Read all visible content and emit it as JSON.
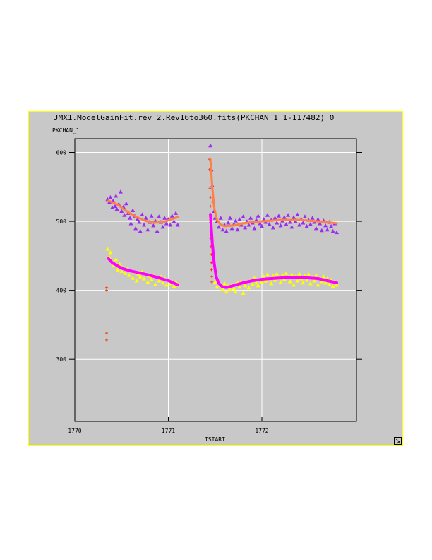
{
  "window": {
    "title": "JMX1.ModelGainFit.rev_2.Rev16to360.fits(PKCHAN_1_1-117482)_0",
    "resize_icon": "resize-corner-icon",
    "frame_color": "#ffff00",
    "background_color": "#c8c8c8"
  },
  "chart_data": {
    "type": "scatter",
    "title": "JMX1.ModelGainFit.rev_2.Rev16to360.fits(PKCHAN_1_1-117482)_0",
    "xlabel": "TSTART",
    "ylabel": "PKCHAN_1",
    "xlim": [
      1770,
      1772.6
    ],
    "ylim": [
      210,
      620
    ],
    "grid": true,
    "x_ticks": [
      1770,
      1771,
      1772
    ],
    "x_tick_labels": [
      "1770",
      "1771",
      "1772"
    ],
    "y_ticks": [
      300,
      400,
      500,
      600
    ],
    "y_tick_labels": [
      "300",
      "400",
      "500",
      "600"
    ],
    "series": [
      {
        "marker": "triangle",
        "color": "#9a2df0",
        "points": [
          [
            1770.35,
            532
          ],
          [
            1770.37,
            528
          ],
          [
            1770.38,
            535
          ],
          [
            1770.4,
            520
          ],
          [
            1770.41,
            530
          ],
          [
            1770.43,
            522
          ],
          [
            1770.44,
            537
          ],
          [
            1770.45,
            518
          ],
          [
            1770.47,
            525
          ],
          [
            1770.49,
            543
          ],
          [
            1770.5,
            515
          ],
          [
            1770.52,
            521
          ],
          [
            1770.53,
            509
          ],
          [
            1770.55,
            526
          ],
          [
            1770.57,
            512
          ],
          [
            1770.59,
            505
          ],
          [
            1770.6,
            497
          ],
          [
            1770.62,
            516
          ],
          [
            1770.64,
            508
          ],
          [
            1770.65,
            490
          ],
          [
            1770.67,
            503
          ],
          [
            1770.69,
            499
          ],
          [
            1770.7,
            486
          ],
          [
            1770.72,
            510
          ],
          [
            1770.74,
            495
          ],
          [
            1770.76,
            505
          ],
          [
            1770.78,
            488
          ],
          [
            1770.8,
            499
          ],
          [
            1770.82,
            508
          ],
          [
            1770.84,
            494
          ],
          [
            1770.86,
            501
          ],
          [
            1770.88,
            486
          ],
          [
            1770.9,
            507
          ],
          [
            1770.92,
            499
          ],
          [
            1770.94,
            492
          ],
          [
            1770.96,
            505
          ],
          [
            1770.98,
            497
          ],
          [
            1771.0,
            503
          ],
          [
            1771.02,
            495
          ],
          [
            1771.04,
            508
          ],
          [
            1771.06,
            500
          ],
          [
            1771.08,
            512
          ],
          [
            1771.1,
            495
          ],
          [
            1771.45,
            610
          ],
          [
            1771.46,
            575
          ],
          [
            1771.47,
            552
          ],
          [
            1771.48,
            530
          ],
          [
            1771.49,
            515
          ],
          [
            1771.5,
            505
          ],
          [
            1771.52,
            500
          ],
          [
            1771.54,
            492
          ],
          [
            1771.56,
            505
          ],
          [
            1771.58,
            488
          ],
          [
            1771.6,
            495
          ],
          [
            1771.62,
            486
          ],
          [
            1771.64,
            498
          ],
          [
            1771.66,
            505
          ],
          [
            1771.68,
            490
          ],
          [
            1771.7,
            496
          ],
          [
            1771.72,
            501
          ],
          [
            1771.74,
            488
          ],
          [
            1771.76,
            503
          ],
          [
            1771.78,
            495
          ],
          [
            1771.8,
            507
          ],
          [
            1771.82,
            491
          ],
          [
            1771.84,
            500
          ],
          [
            1771.86,
            495
          ],
          [
            1771.88,
            505
          ],
          [
            1771.9,
            498
          ],
          [
            1771.92,
            490
          ],
          [
            1771.94,
            502
          ],
          [
            1771.96,
            508
          ],
          [
            1771.98,
            497
          ],
          [
            1772.0,
            493
          ],
          [
            1772.02,
            503
          ],
          [
            1772.04,
            499
          ],
          [
            1772.06,
            509
          ],
          [
            1772.08,
            496
          ],
          [
            1772.1,
            502
          ],
          [
            1772.12,
            491
          ],
          [
            1772.14,
            505
          ],
          [
            1772.16,
            498
          ],
          [
            1772.18,
            508
          ],
          [
            1772.2,
            494
          ],
          [
            1772.22,
            501
          ],
          [
            1772.24,
            506
          ],
          [
            1772.26,
            496
          ],
          [
            1772.28,
            509
          ],
          [
            1772.3,
            499
          ],
          [
            1772.32,
            492
          ],
          [
            1772.34,
            506
          ],
          [
            1772.36,
            500
          ],
          [
            1772.38,
            510
          ],
          [
            1772.4,
            495
          ],
          [
            1772.42,
            503
          ],
          [
            1772.44,
            498
          ],
          [
            1772.46,
            507
          ],
          [
            1772.48,
            493
          ],
          [
            1772.5,
            502
          ],
          [
            1772.52,
            496
          ],
          [
            1772.54,
            505
          ],
          [
            1772.56,
            499
          ],
          [
            1772.58,
            490
          ],
          [
            1772.6,
            503
          ],
          [
            1772.62,
            497
          ],
          [
            1772.64,
            487
          ],
          [
            1772.66,
            501
          ],
          [
            1772.68,
            494
          ],
          [
            1772.7,
            488
          ],
          [
            1772.72,
            499
          ],
          [
            1772.74,
            493
          ],
          [
            1772.76,
            486
          ],
          [
            1772.78,
            497
          ],
          [
            1772.8,
            484
          ]
        ]
      },
      {
        "marker": "triangle",
        "color": "#ffff00",
        "points": [
          [
            1770.35,
            460
          ],
          [
            1770.37,
            448
          ],
          [
            1770.38,
            455
          ],
          [
            1770.4,
            440
          ],
          [
            1770.42,
            437
          ],
          [
            1770.44,
            445
          ],
          [
            1770.46,
            430
          ],
          [
            1770.48,
            438
          ],
          [
            1770.5,
            428
          ],
          [
            1770.52,
            433
          ],
          [
            1770.54,
            425
          ],
          [
            1770.56,
            431
          ],
          [
            1770.58,
            422
          ],
          [
            1770.6,
            429
          ],
          [
            1770.62,
            418
          ],
          [
            1770.64,
            426
          ],
          [
            1770.66,
            414
          ],
          [
            1770.68,
            424
          ],
          [
            1770.7,
            420
          ],
          [
            1770.72,
            427
          ],
          [
            1770.74,
            417
          ],
          [
            1770.76,
            423
          ],
          [
            1770.78,
            412
          ],
          [
            1770.8,
            421
          ],
          [
            1770.82,
            416
          ],
          [
            1770.84,
            422
          ],
          [
            1770.86,
            409
          ],
          [
            1770.88,
            419
          ],
          [
            1770.9,
            414
          ],
          [
            1770.92,
            420
          ],
          [
            1770.94,
            411
          ],
          [
            1770.96,
            417
          ],
          [
            1770.98,
            408
          ],
          [
            1771.0,
            415
          ],
          [
            1771.02,
            410
          ],
          [
            1771.04,
            413
          ],
          [
            1771.06,
            406
          ],
          [
            1771.08,
            412
          ],
          [
            1771.1,
            408
          ],
          [
            1771.5,
            412
          ],
          [
            1771.52,
            405
          ],
          [
            1771.55,
            408
          ],
          [
            1771.58,
            402
          ],
          [
            1771.6,
            410
          ],
          [
            1771.62,
            398
          ],
          [
            1771.64,
            406
          ],
          [
            1771.66,
            401
          ],
          [
            1771.68,
            409
          ],
          [
            1771.7,
            403
          ],
          [
            1771.72,
            398
          ],
          [
            1771.74,
            411
          ],
          [
            1771.76,
            405
          ],
          [
            1771.78,
            413
          ],
          [
            1771.8,
            396
          ],
          [
            1771.82,
            407
          ],
          [
            1771.84,
            412
          ],
          [
            1771.86,
            404
          ],
          [
            1771.88,
            415
          ],
          [
            1771.9,
            409
          ],
          [
            1771.92,
            418
          ],
          [
            1771.94,
            411
          ],
          [
            1771.96,
            407
          ],
          [
            1771.98,
            416
          ],
          [
            1772.0,
            412
          ],
          [
            1772.02,
            420
          ],
          [
            1772.04,
            414
          ],
          [
            1772.06,
            423
          ],
          [
            1772.08,
            417
          ],
          [
            1772.1,
            410
          ],
          [
            1772.12,
            421
          ],
          [
            1772.14,
            415
          ],
          [
            1772.16,
            424
          ],
          [
            1772.18,
            418
          ],
          [
            1772.2,
            412
          ],
          [
            1772.22,
            422
          ],
          [
            1772.24,
            416
          ],
          [
            1772.26,
            425
          ],
          [
            1772.28,
            419
          ],
          [
            1772.3,
            413
          ],
          [
            1772.32,
            423
          ],
          [
            1772.34,
            408
          ],
          [
            1772.36,
            420
          ],
          [
            1772.38,
            414
          ],
          [
            1772.4,
            424
          ],
          [
            1772.42,
            417
          ],
          [
            1772.44,
            411
          ],
          [
            1772.46,
            421
          ],
          [
            1772.48,
            415
          ],
          [
            1772.5,
            423
          ],
          [
            1772.52,
            410
          ],
          [
            1772.54,
            419
          ],
          [
            1772.56,
            414
          ],
          [
            1772.58,
            422
          ],
          [
            1772.6,
            408
          ],
          [
            1772.62,
            418
          ],
          [
            1772.64,
            413
          ],
          [
            1772.66,
            420
          ],
          [
            1772.68,
            411
          ],
          [
            1772.7,
            417
          ],
          [
            1772.72,
            409
          ],
          [
            1772.74,
            415
          ],
          [
            1772.76,
            406
          ],
          [
            1772.78,
            413
          ],
          [
            1772.8,
            408
          ]
        ]
      },
      {
        "marker": "plus",
        "color": "#ff3300",
        "points": [
          [
            1770.34,
            404
          ],
          [
            1770.34,
            400
          ],
          [
            1770.34,
            338
          ],
          [
            1770.34,
            328
          ],
          [
            1771.44,
            590
          ],
          [
            1771.44,
            575
          ],
          [
            1771.445,
            560
          ],
          [
            1771.445,
            548
          ],
          [
            1771.45,
            535
          ],
          [
            1771.45,
            522
          ],
          [
            1771.45,
            510
          ],
          [
            1771.45,
            498
          ],
          [
            1771.455,
            486
          ],
          [
            1771.455,
            475
          ],
          [
            1771.455,
            463
          ],
          [
            1771.46,
            452
          ],
          [
            1771.46,
            440
          ],
          [
            1771.46,
            430
          ],
          [
            1771.465,
            420
          ],
          [
            1771.465,
            412
          ]
        ]
      },
      {
        "marker": "line",
        "color": "#ff8040",
        "width": 3,
        "segments": [
          [
            [
              1770.36,
              530
            ],
            [
              1770.45,
              525
            ],
            [
              1770.55,
              515
            ],
            [
              1770.65,
              507
            ],
            [
              1770.75,
              501
            ],
            [
              1770.85,
              498
            ],
            [
              1770.95,
              499
            ],
            [
              1771.05,
              504
            ],
            [
              1771.1,
              506
            ]
          ],
          [
            [
              1771.45,
              590
            ],
            [
              1771.47,
              548
            ],
            [
              1771.49,
              520
            ],
            [
              1771.52,
              502
            ],
            [
              1771.56,
              495
            ],
            [
              1771.6,
              493
            ],
            [
              1771.7,
              494
            ],
            [
              1771.8,
              497
            ],
            [
              1771.9,
              499
            ],
            [
              1772.0,
              500
            ],
            [
              1772.1,
              501
            ],
            [
              1772.2,
              502
            ],
            [
              1772.3,
              502
            ],
            [
              1772.4,
              502
            ],
            [
              1772.5,
              501
            ],
            [
              1772.6,
              500
            ],
            [
              1772.7,
              499
            ],
            [
              1772.8,
              497
            ]
          ]
        ]
      },
      {
        "marker": "line",
        "color": "#ff00ff",
        "width": 4,
        "segments": [
          [
            [
              1770.36,
              446
            ],
            [
              1770.4,
              440
            ],
            [
              1770.5,
              432
            ],
            [
              1770.6,
              428
            ],
            [
              1770.7,
              425
            ],
            [
              1770.8,
              422
            ],
            [
              1770.9,
              418
            ],
            [
              1771.0,
              414
            ],
            [
              1771.1,
              408
            ]
          ],
          [
            [
              1771.45,
              510
            ],
            [
              1771.47,
              468
            ],
            [
              1771.49,
              440
            ],
            [
              1771.51,
              420
            ],
            [
              1771.54,
              410
            ],
            [
              1771.58,
              405
            ],
            [
              1771.62,
              404
            ],
            [
              1771.7,
              407
            ],
            [
              1771.8,
              411
            ],
            [
              1771.9,
              414
            ],
            [
              1772.0,
              416
            ],
            [
              1772.1,
              417
            ],
            [
              1772.2,
              418
            ],
            [
              1772.3,
              419
            ],
            [
              1772.4,
              419
            ],
            [
              1772.5,
              418
            ],
            [
              1772.6,
              417
            ],
            [
              1772.7,
              414
            ],
            [
              1772.8,
              411
            ]
          ]
        ]
      }
    ]
  }
}
